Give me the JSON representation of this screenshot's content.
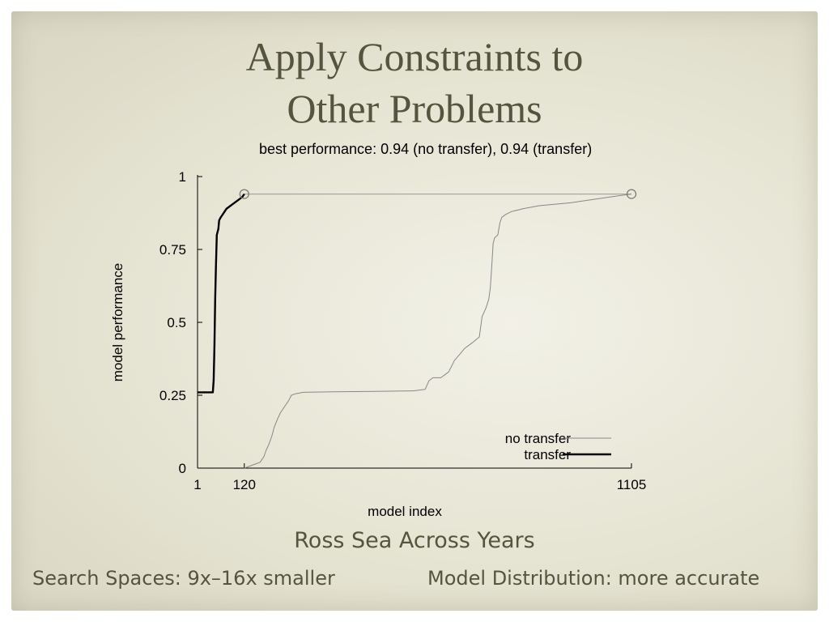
{
  "slide": {
    "title_line1": "Apply Constraints to",
    "title_line2": "Other Problems",
    "subtitle": "Ross Sea Across Years",
    "note_left": "Search Spaces: 9x–16x smaller",
    "note_right": "Model Distribution: more accurate"
  },
  "chart_data": {
    "type": "line",
    "title": "best performance: 0.94 (no transfer), 0.94 (transfer)",
    "xlabel": "model index",
    "ylabel": "model performance",
    "xlim": [
      1,
      1105
    ],
    "ylim": [
      0,
      1
    ],
    "xticks": [
      1,
      120,
      1105
    ],
    "xtick_labels": [
      "1",
      "120",
      "1105"
    ],
    "yticks": [
      0,
      0.25,
      0.5,
      0.75,
      1
    ],
    "ytick_labels": [
      "0",
      "0.25",
      "0.5",
      "0.75",
      "1"
    ],
    "legend_position": "bottom-right",
    "grid": false,
    "series": [
      {
        "name": "no transfer",
        "color": "#888888",
        "points": [
          [
            120,
            0
          ],
          [
            140,
            0.01
          ],
          [
            160,
            0.02
          ],
          [
            170,
            0.04
          ],
          [
            175,
            0.06
          ],
          [
            182,
            0.08
          ],
          [
            190,
            0.11
          ],
          [
            196,
            0.14
          ],
          [
            205,
            0.17
          ],
          [
            212,
            0.19
          ],
          [
            222,
            0.21
          ],
          [
            232,
            0.23
          ],
          [
            240,
            0.25
          ],
          [
            250,
            0.255
          ],
          [
            270,
            0.26
          ],
          [
            350,
            0.262
          ],
          [
            450,
            0.263
          ],
          [
            550,
            0.265
          ],
          [
            580,
            0.27
          ],
          [
            590,
            0.3
          ],
          [
            600,
            0.31
          ],
          [
            620,
            0.31
          ],
          [
            630,
            0.32
          ],
          [
            640,
            0.33
          ],
          [
            655,
            0.37
          ],
          [
            668,
            0.39
          ],
          [
            680,
            0.41
          ],
          [
            700,
            0.43
          ],
          [
            718,
            0.45
          ],
          [
            725,
            0.52
          ],
          [
            735,
            0.55
          ],
          [
            742,
            0.58
          ],
          [
            746,
            0.62
          ],
          [
            750,
            0.7
          ],
          [
            753,
            0.77
          ],
          [
            757,
            0.79
          ],
          [
            765,
            0.8
          ],
          [
            770,
            0.84
          ],
          [
            775,
            0.86
          ],
          [
            785,
            0.87
          ],
          [
            800,
            0.88
          ],
          [
            830,
            0.89
          ],
          [
            870,
            0.9
          ],
          [
            950,
            0.91
          ],
          [
            1050,
            0.93
          ],
          [
            1105,
            0.94
          ]
        ]
      },
      {
        "name": "transfer",
        "color": "#000000",
        "points": [
          [
            1,
            0.26
          ],
          [
            40,
            0.26
          ],
          [
            42,
            0.3
          ],
          [
            44,
            0.42
          ],
          [
            46,
            0.58
          ],
          [
            48,
            0.7
          ],
          [
            50,
            0.8
          ],
          [
            54,
            0.82
          ],
          [
            56,
            0.85
          ],
          [
            60,
            0.86
          ],
          [
            65,
            0.87
          ],
          [
            70,
            0.88
          ],
          [
            75,
            0.89
          ],
          [
            85,
            0.9
          ],
          [
            95,
            0.91
          ],
          [
            105,
            0.92
          ],
          [
            115,
            0.93
          ],
          [
            120,
            0.94
          ]
        ]
      }
    ],
    "best_markers": [
      {
        "series": "transfer",
        "x": 120,
        "y": 0.94
      },
      {
        "series": "no transfer",
        "x": 1105,
        "y": 0.94
      }
    ]
  }
}
